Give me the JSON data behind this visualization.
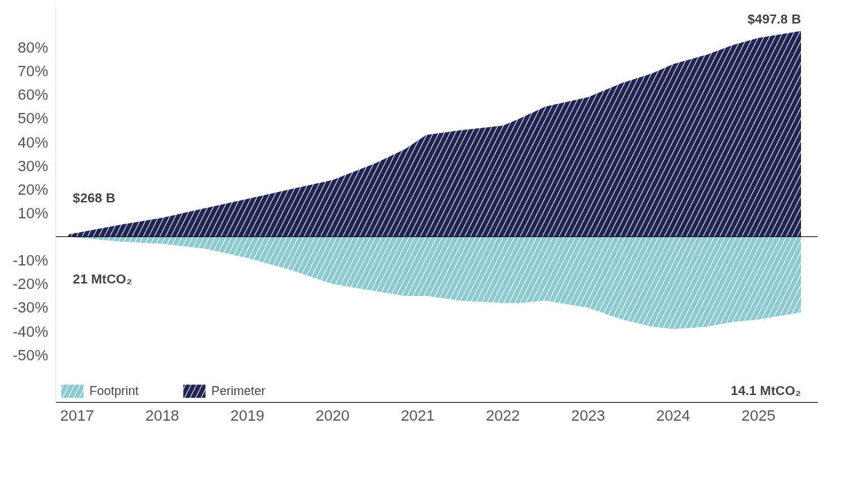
{
  "chart_data": {
    "type": "area",
    "xlim": [
      2016.75,
      2025.7
    ],
    "ylim": [
      -70,
      97
    ],
    "xticks": [
      2017,
      2018,
      2019,
      2020,
      2021,
      2022,
      2023,
      2024,
      2025
    ],
    "yticks": [
      {
        "value": -50,
        "label": "-50%"
      },
      {
        "value": -40,
        "label": "-40%"
      },
      {
        "value": -30,
        "label": "-30%"
      },
      {
        "value": -20,
        "label": "-20%"
      },
      {
        "value": -10,
        "label": "-10%"
      },
      {
        "value": 10,
        "label": "10%"
      },
      {
        "value": 20,
        "label": "20%"
      },
      {
        "value": 30,
        "label": "30%"
      },
      {
        "value": 40,
        "label": "40%"
      },
      {
        "value": 50,
        "label": "50%"
      },
      {
        "value": 60,
        "label": "60%"
      },
      {
        "value": 70,
        "label": "70%"
      },
      {
        "value": 80,
        "label": "80%"
      }
    ],
    "x": [
      2016.9,
      2017.5,
      2018,
      2018.5,
      2019,
      2019.5,
      2020,
      2020.5,
      2020.85,
      2021.1,
      2021.5,
      2022,
      2022.2,
      2022.5,
      2023,
      2023.4,
      2023.75,
      2024,
      2024.4,
      2024.7,
      2025,
      2025.5
    ],
    "series": [
      {
        "name": "Footprint",
        "color": "#8ec9d0",
        "values": [
          0,
          -2,
          -3,
          -5,
          -9,
          -14,
          -20,
          -23,
          -25,
          -25,
          -27,
          -28,
          -28,
          -27,
          -30,
          -35,
          -38,
          -39,
          -38,
          -36,
          -35,
          -32
        ]
      },
      {
        "name": "Perimeter",
        "color": "#1f2452",
        "values": [
          1,
          5,
          8,
          12,
          16,
          20,
          24,
          31,
          37,
          43,
          45,
          47,
          50,
          55,
          59,
          65,
          69,
          73,
          77,
          81,
          84,
          87
        ]
      }
    ],
    "annotations": [
      "$268 B",
      "21 MtCO₂",
      "$497.8 B",
      "14.1 MtCO₂"
    ],
    "ref_lines": [
      {
        "axis": "y",
        "value": 0,
        "label": null,
        "color": "#000000"
      }
    ],
    "legend": "bottom left"
  }
}
